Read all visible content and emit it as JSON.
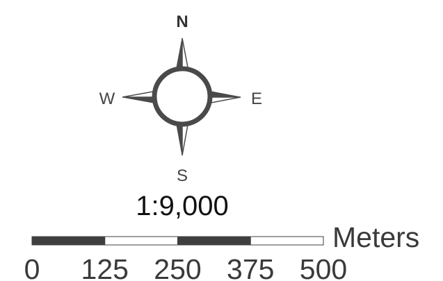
{
  "north_arrow": {
    "north_label": "N",
    "east_label": "E",
    "south_label": "S",
    "west_label": "W",
    "icon": "compass-rose-icon",
    "color": "#4a4a4a"
  },
  "scale_text": "1:9,000",
  "scale_bar": {
    "units_label": "Meters",
    "tick_labels": [
      "0",
      "125",
      "250",
      "375",
      "500"
    ],
    "segments": [
      {
        "from": 0,
        "to": 125,
        "fill": "#3f3f3f"
      },
      {
        "from": 125,
        "to": 250,
        "fill": "#ffffff"
      },
      {
        "from": 250,
        "to": 375,
        "fill": "#3f3f3f"
      },
      {
        "from": 375,
        "to": 500,
        "fill": "#ffffff"
      }
    ],
    "max_value": 500
  }
}
